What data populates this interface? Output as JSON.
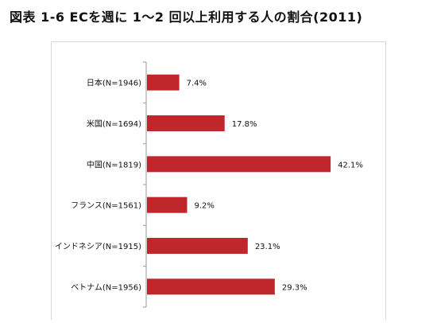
{
  "title": "図表 1-6 ECを週に 1～2 回以上利用する人の割合(2011)",
  "colors": {
    "bar": "#c0272d",
    "axis": "#9a9a9a",
    "frame": "#d6d6d6"
  },
  "chart_data": {
    "type": "bar",
    "orientation": "horizontal",
    "categories": [
      "日本(N=1946)",
      "米国(N=1694)",
      "中国(N=1819)",
      "フランス(N=1561)",
      "インドネシア(N=1915)",
      "ベトナム(N=1956)"
    ],
    "values": [
      7.4,
      17.8,
      42.1,
      9.2,
      23.1,
      29.3
    ],
    "value_labels": [
      "7.4%",
      "17.8%",
      "42.1%",
      "9.2%",
      "23.1%",
      "29.3%"
    ],
    "xlim": [
      0,
      50
    ],
    "grid": false,
    "legend": "none"
  }
}
